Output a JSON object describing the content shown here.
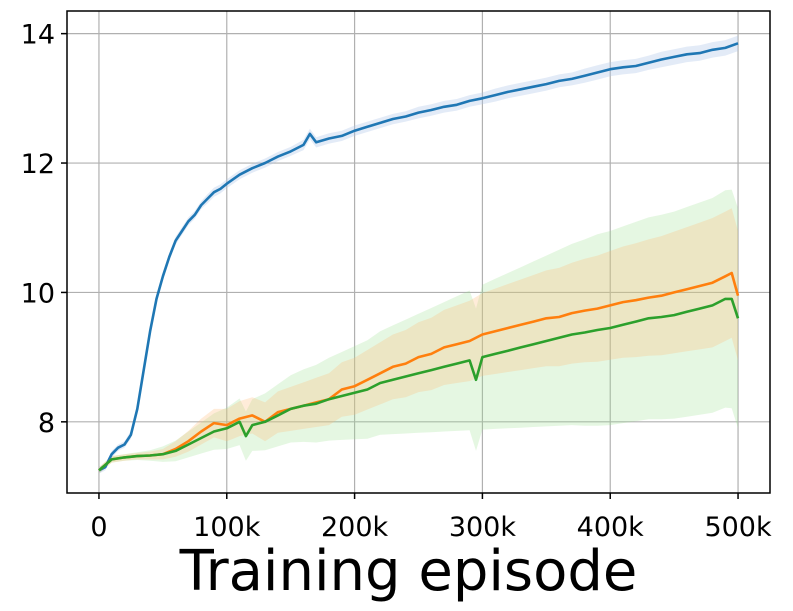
{
  "chart_data": {
    "type": "line",
    "title": "",
    "xlabel": "Training episode",
    "ylabel": "",
    "xlim": [
      -25000,
      525000
    ],
    "ylim": [
      6.9,
      14.35
    ],
    "grid": true,
    "legend": "none",
    "x_ticks": [
      {
        "value": 0,
        "label": "0"
      },
      {
        "value": 100000,
        "label": "100k"
      },
      {
        "value": 200000,
        "label": "200k"
      },
      {
        "value": 300000,
        "label": "300k"
      },
      {
        "value": 400000,
        "label": "400k"
      },
      {
        "value": 500000,
        "label": "500k"
      }
    ],
    "y_ticks": [
      {
        "value": 8,
        "label": "8"
      },
      {
        "value": 10,
        "label": "10"
      },
      {
        "value": 12,
        "label": "12"
      },
      {
        "value": 14,
        "label": "14"
      }
    ],
    "series": [
      {
        "color": "#1f77b4",
        "band_color": "#aec7e8",
        "band_opacity": 0.35,
        "x": [
          0,
          5000,
          10000,
          15000,
          20000,
          25000,
          30000,
          35000,
          40000,
          45000,
          50000,
          55000,
          60000,
          65000,
          70000,
          75000,
          80000,
          85000,
          90000,
          95000,
          100000,
          110000,
          120000,
          130000,
          140000,
          150000,
          160000,
          165000,
          170000,
          180000,
          190000,
          200000,
          210000,
          220000,
          230000,
          240000,
          250000,
          260000,
          270000,
          280000,
          290000,
          300000,
          310000,
          320000,
          330000,
          340000,
          350000,
          360000,
          370000,
          380000,
          390000,
          400000,
          410000,
          420000,
          430000,
          440000,
          450000,
          460000,
          470000,
          480000,
          490000,
          500000
        ],
        "values": [
          7.25,
          7.3,
          7.5,
          7.6,
          7.65,
          7.8,
          8.2,
          8.8,
          9.4,
          9.9,
          10.25,
          10.55,
          10.8,
          10.95,
          11.1,
          11.2,
          11.35,
          11.45,
          11.55,
          11.6,
          11.68,
          11.82,
          11.92,
          12.0,
          12.1,
          12.18,
          12.28,
          12.45,
          12.32,
          12.38,
          12.42,
          12.5,
          12.56,
          12.62,
          12.68,
          12.72,
          12.78,
          12.82,
          12.87,
          12.9,
          12.96,
          13.0,
          13.05,
          13.1,
          13.14,
          13.18,
          13.22,
          13.27,
          13.3,
          13.35,
          13.4,
          13.45,
          13.48,
          13.5,
          13.55,
          13.6,
          13.64,
          13.68,
          13.7,
          13.75,
          13.78,
          13.85
        ],
        "band": [
          0.05,
          0.05,
          0.05,
          0.05,
          0.05,
          0.06,
          0.06,
          0.06,
          0.06,
          0.06,
          0.06,
          0.06,
          0.06,
          0.06,
          0.06,
          0.06,
          0.06,
          0.07,
          0.07,
          0.07,
          0.07,
          0.07,
          0.07,
          0.07,
          0.07,
          0.07,
          0.08,
          0.08,
          0.08,
          0.08,
          0.08,
          0.08,
          0.08,
          0.08,
          0.08,
          0.08,
          0.09,
          0.09,
          0.09,
          0.09,
          0.09,
          0.09,
          0.1,
          0.1,
          0.1,
          0.1,
          0.1,
          0.1,
          0.1,
          0.11,
          0.11,
          0.11,
          0.11,
          0.11,
          0.11,
          0.12,
          0.12,
          0.12,
          0.12,
          0.12,
          0.12,
          0.12
        ]
      },
      {
        "color": "#ff7f0e",
        "band_color": "#ffbb78",
        "band_opacity": 0.28,
        "x": [
          0,
          10000,
          20000,
          30000,
          40000,
          50000,
          60000,
          70000,
          80000,
          90000,
          100000,
          105000,
          110000,
          120000,
          130000,
          140000,
          150000,
          160000,
          170000,
          180000,
          190000,
          200000,
          210000,
          220000,
          230000,
          240000,
          250000,
          260000,
          270000,
          280000,
          290000,
          300000,
          310000,
          320000,
          330000,
          340000,
          350000,
          360000,
          370000,
          380000,
          390000,
          400000,
          410000,
          420000,
          430000,
          440000,
          450000,
          460000,
          470000,
          480000,
          490000,
          495000,
          500000
        ],
        "values": [
          7.25,
          7.42,
          7.45,
          7.47,
          7.48,
          7.5,
          7.58,
          7.7,
          7.85,
          7.98,
          7.95,
          8.0,
          8.05,
          8.1,
          8.0,
          8.15,
          8.2,
          8.25,
          8.3,
          8.35,
          8.5,
          8.55,
          8.65,
          8.75,
          8.85,
          8.9,
          9.0,
          9.05,
          9.15,
          9.2,
          9.25,
          9.35,
          9.4,
          9.45,
          9.5,
          9.55,
          9.6,
          9.62,
          9.68,
          9.72,
          9.75,
          9.8,
          9.85,
          9.88,
          9.92,
          9.95,
          10.0,
          10.05,
          10.1,
          10.15,
          10.25,
          10.3,
          9.95
        ],
        "band": [
          0.05,
          0.05,
          0.05,
          0.05,
          0.06,
          0.08,
          0.12,
          0.16,
          0.2,
          0.22,
          0.25,
          0.26,
          0.27,
          0.28,
          0.3,
          0.32,
          0.34,
          0.36,
          0.38,
          0.4,
          0.42,
          0.44,
          0.46,
          0.48,
          0.5,
          0.52,
          0.54,
          0.56,
          0.58,
          0.6,
          0.62,
          0.64,
          0.66,
          0.68,
          0.7,
          0.72,
          0.74,
          0.76,
          0.78,
          0.8,
          0.82,
          0.84,
          0.86,
          0.88,
          0.9,
          0.92,
          0.94,
          0.96,
          0.98,
          1.0,
          1.0,
          1.0,
          1.0
        ]
      },
      {
        "color": "#2ca02c",
        "band_color": "#98df8a",
        "band_opacity": 0.25,
        "x": [
          0,
          10000,
          20000,
          30000,
          40000,
          50000,
          60000,
          70000,
          80000,
          90000,
          100000,
          110000,
          115000,
          120000,
          130000,
          140000,
          150000,
          160000,
          170000,
          180000,
          190000,
          200000,
          210000,
          220000,
          230000,
          240000,
          250000,
          260000,
          270000,
          280000,
          290000,
          295000,
          300000,
          310000,
          320000,
          330000,
          340000,
          350000,
          360000,
          370000,
          380000,
          390000,
          400000,
          410000,
          420000,
          430000,
          440000,
          450000,
          460000,
          470000,
          480000,
          490000,
          495000,
          500000
        ],
        "values": [
          7.25,
          7.42,
          7.45,
          7.47,
          7.48,
          7.5,
          7.55,
          7.65,
          7.75,
          7.85,
          7.9,
          8.0,
          7.78,
          7.95,
          8.0,
          8.1,
          8.2,
          8.25,
          8.28,
          8.35,
          8.4,
          8.45,
          8.5,
          8.6,
          8.65,
          8.7,
          8.75,
          8.8,
          8.85,
          8.9,
          8.95,
          8.65,
          9.0,
          9.05,
          9.1,
          9.15,
          9.2,
          9.25,
          9.3,
          9.35,
          9.38,
          9.42,
          9.45,
          9.5,
          9.55,
          9.6,
          9.62,
          9.65,
          9.7,
          9.75,
          9.8,
          9.9,
          9.9,
          9.6
        ],
        "band": [
          0.05,
          0.05,
          0.05,
          0.06,
          0.08,
          0.12,
          0.16,
          0.2,
          0.24,
          0.28,
          0.32,
          0.36,
          0.38,
          0.4,
          0.44,
          0.48,
          0.52,
          0.56,
          0.6,
          0.64,
          0.68,
          0.72,
          0.76,
          0.8,
          0.84,
          0.88,
          0.92,
          0.96,
          1.0,
          1.04,
          1.08,
          1.1,
          1.12,
          1.16,
          1.2,
          1.24,
          1.28,
          1.32,
          1.36,
          1.4,
          1.44,
          1.48,
          1.5,
          1.52,
          1.54,
          1.56,
          1.58,
          1.6,
          1.62,
          1.64,
          1.66,
          1.68,
          1.69,
          1.7
        ]
      }
    ]
  }
}
